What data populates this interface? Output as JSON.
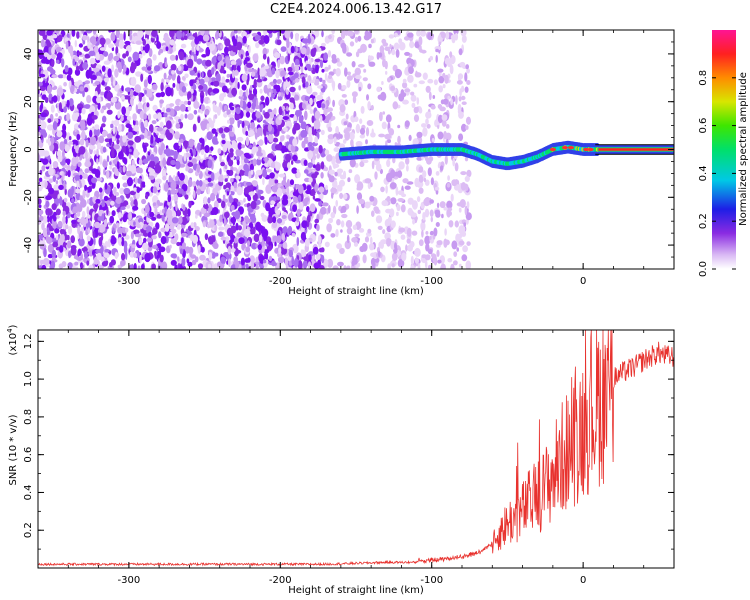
{
  "figure_title": "C2E4.2024.006.13.42.G17",
  "chart_data": [
    {
      "type": "heatmap",
      "title": "",
      "xlabel": "Height of straight line (km)",
      "ylabel": "Frequency (Hz)",
      "xlim": [
        -360,
        60
      ],
      "ylim": [
        -50,
        50
      ],
      "x_ticks": [
        -300,
        -200,
        -100,
        0
      ],
      "x_tick_labels": [
        "-300",
        "-200",
        "-100",
        "0"
      ],
      "y_ticks": [
        -40,
        -20,
        0,
        20,
        40
      ],
      "y_tick_labels": [
        "-40",
        "-20",
        "0",
        "20",
        "40"
      ],
      "colorbar": {
        "label": "Normalized spectral amplitude",
        "range": [
          0,
          1
        ],
        "ticks": [
          0.0,
          0.2,
          0.4,
          0.6,
          0.8
        ],
        "tick_labels": [
          "0.0",
          "0.2",
          "0.4",
          "0.6",
          "0.8"
        ],
        "colormap": "rainbow (white-violet-blue-cyan-green-yellow-orange-red-magenta)"
      },
      "signal_track": {
        "x": [
          -160,
          -140,
          -120,
          -100,
          -80,
          -70,
          -60,
          -50,
          -40,
          -30,
          -20,
          -10,
          0,
          10,
          20,
          40,
          60
        ],
        "frequency": [
          -2,
          -1,
          -1,
          0,
          0,
          -2,
          -5,
          -6,
          -5,
          -3,
          0,
          1,
          0,
          0,
          0,
          0,
          0
        ]
      },
      "noise_region": [
        -360,
        -75
      ],
      "grid": false
    },
    {
      "type": "line",
      "title": "",
      "xlabel": "Height of straight line (km)",
      "ylabel": "SNR (10 * v/v)",
      "y_multiplier_label": "(x10",
      "y_multiplier_exponent": "4",
      "xlim": [
        -360,
        60
      ],
      "ylim": [
        0,
        1.26
      ],
      "x_ticks": [
        -300,
        -200,
        -100,
        0
      ],
      "x_tick_labels": [
        "-300",
        "-200",
        "-100",
        "0"
      ],
      "y_ticks": [
        0.2,
        0.4,
        0.6,
        0.8,
        1.0,
        1.2
      ],
      "y_tick_labels": [
        "0.2",
        "0.4",
        "0.6",
        "0.8",
        "1.0",
        "1.2"
      ],
      "series_color": "#e8322e",
      "series": [
        {
          "x": [
            -360,
            -300,
            -250,
            -200,
            -170,
            -150,
            -130,
            -110,
            -100,
            -90,
            -80,
            -70,
            -60,
            -55,
            -50,
            -45,
            -40,
            -35,
            -30,
            -25,
            -20,
            -15,
            -10,
            -5,
            0,
            5,
            10,
            15,
            20,
            25,
            30,
            35,
            40,
            45,
            50,
            55,
            60
          ],
          "values": [
            0.02,
            0.02,
            0.02,
            0.02,
            0.02,
            0.025,
            0.03,
            0.03,
            0.03,
            0.04,
            0.05,
            0.07,
            0.12,
            0.2,
            0.25,
            0.28,
            0.32,
            0.37,
            0.4,
            0.45,
            0.52,
            0.6,
            0.66,
            0.72,
            0.8,
            0.87,
            0.93,
            0.98,
            1.0,
            1.03,
            1.05,
            1.07,
            1.1,
            1.12,
            1.14,
            1.12,
            1.12
          ]
        }
      ],
      "grid": false
    }
  ]
}
